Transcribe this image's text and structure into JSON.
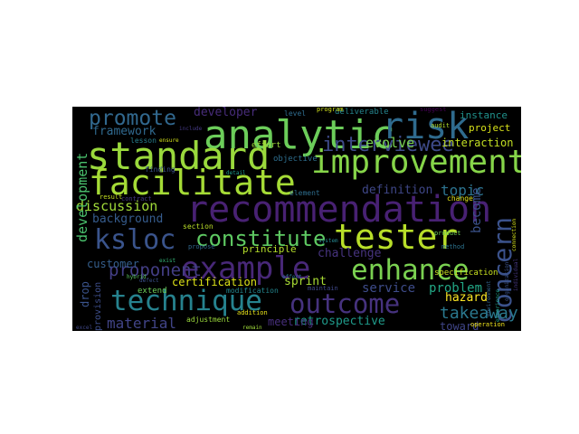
{
  "wordcloud": {
    "background": "#000000",
    "words": [
      {
        "text": "analytic",
        "color": "#6ccd5a",
        "v": false
      },
      {
        "text": "risk",
        "color": "#2f6b8e",
        "v": false
      },
      {
        "text": "standard",
        "color": "#9ad93c",
        "v": false
      },
      {
        "text": "improvement",
        "color": "#86d549",
        "v": false
      },
      {
        "text": "facilitate",
        "color": "#a5db36",
        "v": false
      },
      {
        "text": "interviewee",
        "color": "#3e4a89",
        "v": false
      },
      {
        "text": "recommendation",
        "color": "#482173",
        "v": false
      },
      {
        "text": "tester",
        "color": "#b8de29",
        "v": false
      },
      {
        "text": "ksloc",
        "color": "#3a548c",
        "v": false
      },
      {
        "text": "constitute",
        "color": "#5ec962",
        "v": false
      },
      {
        "text": "example",
        "color": "#482878",
        "v": false
      },
      {
        "text": "enhance",
        "color": "#7ad151",
        "v": false
      },
      {
        "text": "technique",
        "color": "#26828e",
        "v": false
      },
      {
        "text": "outcome",
        "color": "#46327e",
        "v": false
      },
      {
        "text": "promote",
        "color": "#31688e",
        "v": false
      },
      {
        "text": "concern",
        "color": "#3b528b",
        "v": true
      },
      {
        "text": "discussion",
        "color": "#a0da39",
        "v": false
      },
      {
        "text": "proponent",
        "color": "#433e85",
        "v": false
      },
      {
        "text": "certification",
        "color": "#dde318",
        "v": false
      },
      {
        "text": "takeaway",
        "color": "#2a788e",
        "v": false
      },
      {
        "text": "retrospective",
        "color": "#1f9a8a",
        "v": false
      },
      {
        "text": "topic",
        "color": "#2c728e",
        "v": false
      },
      {
        "text": "development",
        "color": "#4ac16d",
        "v": true
      },
      {
        "text": "framework",
        "color": "#30698e",
        "v": false
      },
      {
        "text": "background",
        "color": "#365c8d",
        "v": false
      },
      {
        "text": "customer",
        "color": "#355f8d",
        "v": false
      },
      {
        "text": "material",
        "color": "#414487",
        "v": false
      },
      {
        "text": "developer",
        "color": "#472c7a",
        "v": false
      },
      {
        "text": "interaction",
        "color": "#c2df23",
        "v": false
      },
      {
        "text": "instance",
        "color": "#20928c",
        "v": false
      },
      {
        "text": "evolve",
        "color": "#7ad151",
        "v": false
      },
      {
        "text": "definition",
        "color": "#3f4788",
        "v": false
      },
      {
        "text": "become",
        "color": "#3b528b",
        "v": true
      },
      {
        "text": "challenge",
        "color": "#46337e",
        "v": false
      },
      {
        "text": "principle",
        "color": "#b5de2b",
        "v": false
      },
      {
        "text": "sprint",
        "color": "#a8db34",
        "v": false
      },
      {
        "text": "service",
        "color": "#3e4c8a",
        "v": false
      },
      {
        "text": "problem",
        "color": "#22a785",
        "v": false
      },
      {
        "text": "hazard",
        "color": "#fde725",
        "v": false
      },
      {
        "text": "project",
        "color": "#d8e219",
        "v": false
      },
      {
        "text": "meeting",
        "color": "#472f7d",
        "v": false
      },
      {
        "text": "toward",
        "color": "#404588",
        "v": false
      },
      {
        "text": "drop",
        "color": "#3a538b",
        "v": true
      },
      {
        "text": "provision",
        "color": "#3d4e8a",
        "v": true
      },
      {
        "text": "specification",
        "color": "#c8e020",
        "v": false
      },
      {
        "text": "deliverable",
        "color": "#25858e",
        "v": false
      },
      {
        "text": "objective",
        "color": "#2e6e8e",
        "v": false
      },
      {
        "text": "extend",
        "color": "#6ece58",
        "v": false
      },
      {
        "text": "adjustment",
        "color": "#9bd93c",
        "v": false
      },
      {
        "text": "modification",
        "color": "#24868e",
        "v": false
      },
      {
        "text": "effort",
        "color": "#9dd93b",
        "v": false
      },
      {
        "text": "finding",
        "color": "#3b528b",
        "v": false
      },
      {
        "text": "element",
        "color": "#2e6e8e",
        "v": false
      },
      {
        "text": "lesson",
        "color": "#277f8e",
        "v": false
      },
      {
        "text": "section",
        "color": "#bade28",
        "v": false
      },
      {
        "text": "result",
        "color": "#c5e021",
        "v": false
      },
      {
        "text": "propose",
        "color": "#31688e",
        "v": false
      },
      {
        "text": "maintain",
        "color": "#3f4889",
        "v": false
      },
      {
        "text": "addition",
        "color": "#eae51a",
        "v": false
      },
      {
        "text": "level",
        "color": "#2f6c8e",
        "v": false
      },
      {
        "text": "program",
        "color": "#d0e11c",
        "v": false
      },
      {
        "text": "suggest",
        "color": "#440154",
        "v": false
      },
      {
        "text": "audit",
        "color": "#b2dd2d",
        "v": false
      },
      {
        "text": "product",
        "color": "#6ece58",
        "v": false
      },
      {
        "text": "method",
        "color": "#2c738e",
        "v": false
      },
      {
        "text": "change",
        "color": "#e2e418",
        "v": false
      },
      {
        "text": "operation",
        "color": "#f1e51d",
        "v": false
      },
      {
        "text": "contract",
        "color": "#443a83",
        "v": false
      },
      {
        "text": "include",
        "color": "#443983",
        "v": false
      },
      {
        "text": "ensure",
        "color": "#d5e21a",
        "v": false
      },
      {
        "text": "defect",
        "color": "#3b518b",
        "v": false
      },
      {
        "text": "excel",
        "color": "#3f4788",
        "v": false
      },
      {
        "text": "remain",
        "color": "#9fda3a",
        "v": false
      },
      {
        "text": "effect",
        "color": "#2d718e",
        "v": false
      },
      {
        "text": "detail",
        "color": "#1e9b8a",
        "v": false
      },
      {
        "text": "hybrid",
        "color": "#5cc863",
        "v": false
      },
      {
        "text": "exist",
        "color": "#35b779",
        "v": false
      },
      {
        "text": "system",
        "color": "#25848e",
        "v": false
      },
      {
        "text": "organization",
        "color": "#3b528b",
        "v": true
      },
      {
        "text": "individual",
        "color": "#453781",
        "v": true
      },
      {
        "text": "environment",
        "color": "#33638d",
        "v": true
      },
      {
        "text": "experience",
        "color": "#1fa088",
        "v": true
      },
      {
        "text": "connection",
        "color": "#d5e21a",
        "v": true
      }
    ]
  }
}
